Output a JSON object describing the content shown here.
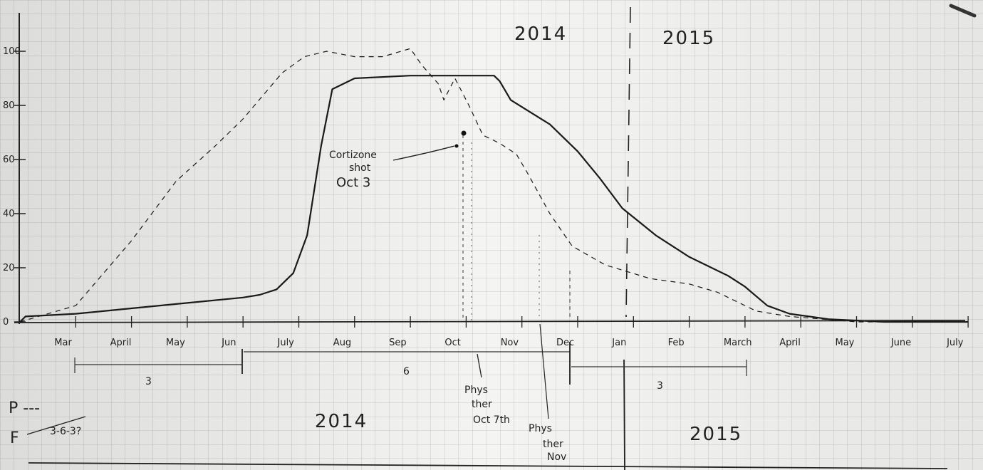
{
  "chart_data": {
    "type": "line",
    "year_labels_top": [
      "2014",
      "2015"
    ],
    "year_labels_bottom": [
      "2014",
      "2015"
    ],
    "y_ticks": [
      "0",
      "20",
      "40",
      "60",
      "80",
      "100"
    ],
    "ylim": [
      0,
      110
    ],
    "x_month_labels": [
      "Mar",
      "April",
      "May",
      "Jun",
      "July",
      "Aug",
      "Sep",
      "Oct",
      "Nov",
      "Dec",
      "Jan",
      "Feb",
      "March",
      "April",
      "May",
      "June",
      "July"
    ],
    "series": [
      {
        "style": "solid",
        "points": [
          [
            0,
            0
          ],
          [
            0.1,
            2
          ],
          [
            1,
            3
          ],
          [
            2,
            5
          ],
          [
            3,
            7
          ],
          [
            4,
            9
          ],
          [
            4.3,
            10
          ],
          [
            4.6,
            12
          ],
          [
            4.9,
            18
          ],
          [
            5.15,
            32
          ],
          [
            5.4,
            65
          ],
          [
            5.6,
            86
          ],
          [
            6,
            90
          ],
          [
            7,
            91
          ],
          [
            8,
            91
          ],
          [
            8.5,
            91
          ],
          [
            8.6,
            89
          ],
          [
            8.8,
            82
          ],
          [
            9.5,
            73
          ],
          [
            10,
            63
          ],
          [
            10.4,
            53
          ],
          [
            10.8,
            42
          ],
          [
            11.4,
            32
          ],
          [
            12,
            24
          ],
          [
            12.7,
            17
          ],
          [
            13,
            13
          ],
          [
            13.4,
            6
          ],
          [
            13.8,
            3
          ],
          [
            14.5,
            1
          ],
          [
            15.5,
            0
          ],
          [
            17,
            0
          ]
        ]
      },
      {
        "style": "dashed",
        "points": [
          [
            0,
            0
          ],
          [
            1,
            6
          ],
          [
            2,
            30
          ],
          [
            2.8,
            52
          ],
          [
            3.5,
            65
          ],
          [
            4,
            75
          ],
          [
            4.7,
            92
          ],
          [
            5.1,
            98
          ],
          [
            5.5,
            100
          ],
          [
            6,
            98
          ],
          [
            6.5,
            98
          ],
          [
            7,
            101
          ],
          [
            7.2,
            95
          ],
          [
            7.5,
            88
          ],
          [
            7.6,
            82
          ],
          [
            7.8,
            90
          ],
          [
            8.05,
            80
          ],
          [
            8.3,
            69
          ],
          [
            8.6,
            66
          ],
          [
            8.9,
            62
          ],
          [
            9.1,
            55
          ],
          [
            9.5,
            40
          ],
          [
            9.9,
            28
          ],
          [
            10.5,
            21
          ],
          [
            11.3,
            16
          ],
          [
            12,
            14
          ],
          [
            12.5,
            11
          ],
          [
            13.2,
            4
          ],
          [
            13.8,
            2
          ],
          [
            15,
            0
          ],
          [
            17,
            0
          ]
        ]
      }
    ],
    "annotations": [
      {
        "lines": [
          "Cortizone",
          "shot",
          "Oct 3"
        ]
      },
      {
        "lines": [
          "Phys",
          "ther",
          "Oct 7th"
        ]
      },
      {
        "lines": [
          "Phys",
          "ther",
          "Nov"
        ]
      }
    ],
    "braces": [
      {
        "label": "3"
      },
      {
        "label": "6"
      },
      {
        "label": "3"
      }
    ],
    "legend_notes": {
      "p_label": "P ---",
      "f_label": "F",
      "f_fraction": "3-6-3?"
    }
  }
}
